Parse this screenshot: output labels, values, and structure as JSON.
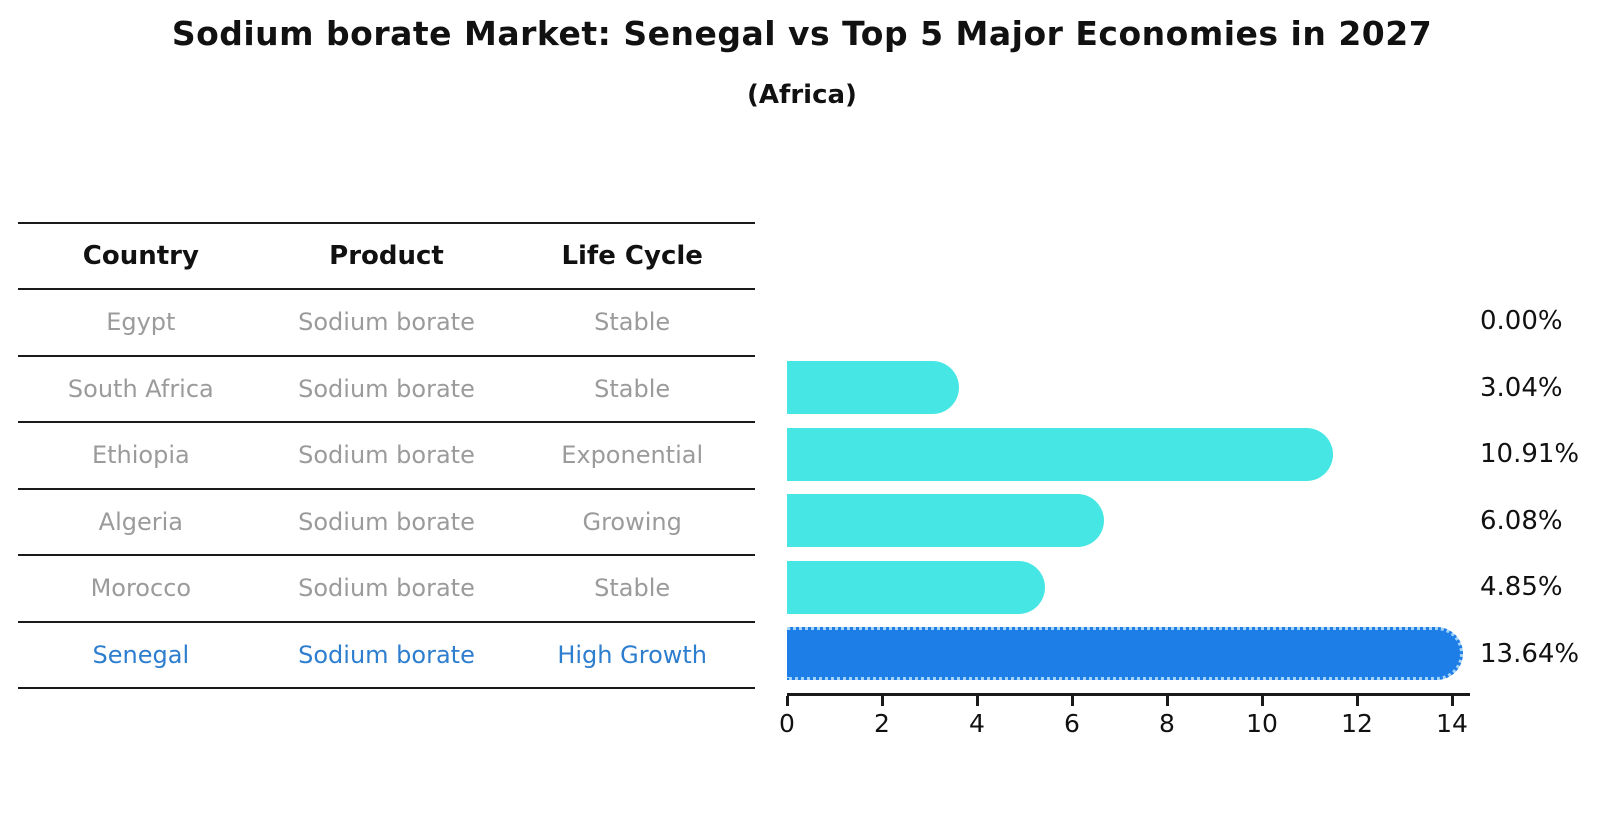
{
  "chart_data": {
    "type": "bar",
    "orientation": "horizontal",
    "title": "Sodium borate Market: Senegal vs Top 5 Major Economies in 2027",
    "subtitle": "(Africa)",
    "categories": [
      "Egypt",
      "South Africa",
      "Ethiopia",
      "Algeria",
      "Morocco",
      "Senegal"
    ],
    "values": [
      0.0,
      3.04,
      10.91,
      6.08,
      4.85,
      13.64
    ],
    "value_labels": [
      "0.00%",
      "3.04%",
      "10.91%",
      "6.08%",
      "4.85%",
      "13.64%"
    ],
    "xlabel": "",
    "ylabel": "",
    "xlim": [
      0,
      14
    ],
    "xticks": [
      0,
      2,
      4,
      6,
      8,
      10,
      12,
      14
    ],
    "grid": false,
    "legend": false,
    "highlight_index": 5,
    "colors": {
      "bar": "#45E6E3",
      "highlight_bar": "#1D7EE8",
      "highlight_bar_dots": "#A6D3F8",
      "axis": "#1A1A1A",
      "text": "#111111",
      "muted_text": "#9B9B9B",
      "highlight_text": "#2E7ECF"
    }
  },
  "table": {
    "headers": [
      "Country",
      "Product",
      "Life Cycle"
    ],
    "rows": [
      {
        "country": "Egypt",
        "product": "Sodium borate",
        "life_cycle": "Stable",
        "value": 0.0,
        "value_label": "0.00%",
        "highlight": false
      },
      {
        "country": "South Africa",
        "product": "Sodium borate",
        "life_cycle": "Stable",
        "value": 3.04,
        "value_label": "3.04%",
        "highlight": false
      },
      {
        "country": "Ethiopia",
        "product": "Sodium borate",
        "life_cycle": "Exponential",
        "value": 10.91,
        "value_label": "10.91%",
        "highlight": false
      },
      {
        "country": "Algeria",
        "product": "Sodium borate",
        "life_cycle": "Growing",
        "value": 6.08,
        "value_label": "6.08%",
        "highlight": false
      },
      {
        "country": "Morocco",
        "product": "Sodium borate",
        "life_cycle": "Stable",
        "value": 4.85,
        "value_label": "4.85%",
        "highlight": false
      },
      {
        "country": "Senegal",
        "product": "Sodium borate",
        "life_cycle": "High Growth",
        "value": 13.64,
        "value_label": "13.64%",
        "highlight": true
      }
    ]
  }
}
